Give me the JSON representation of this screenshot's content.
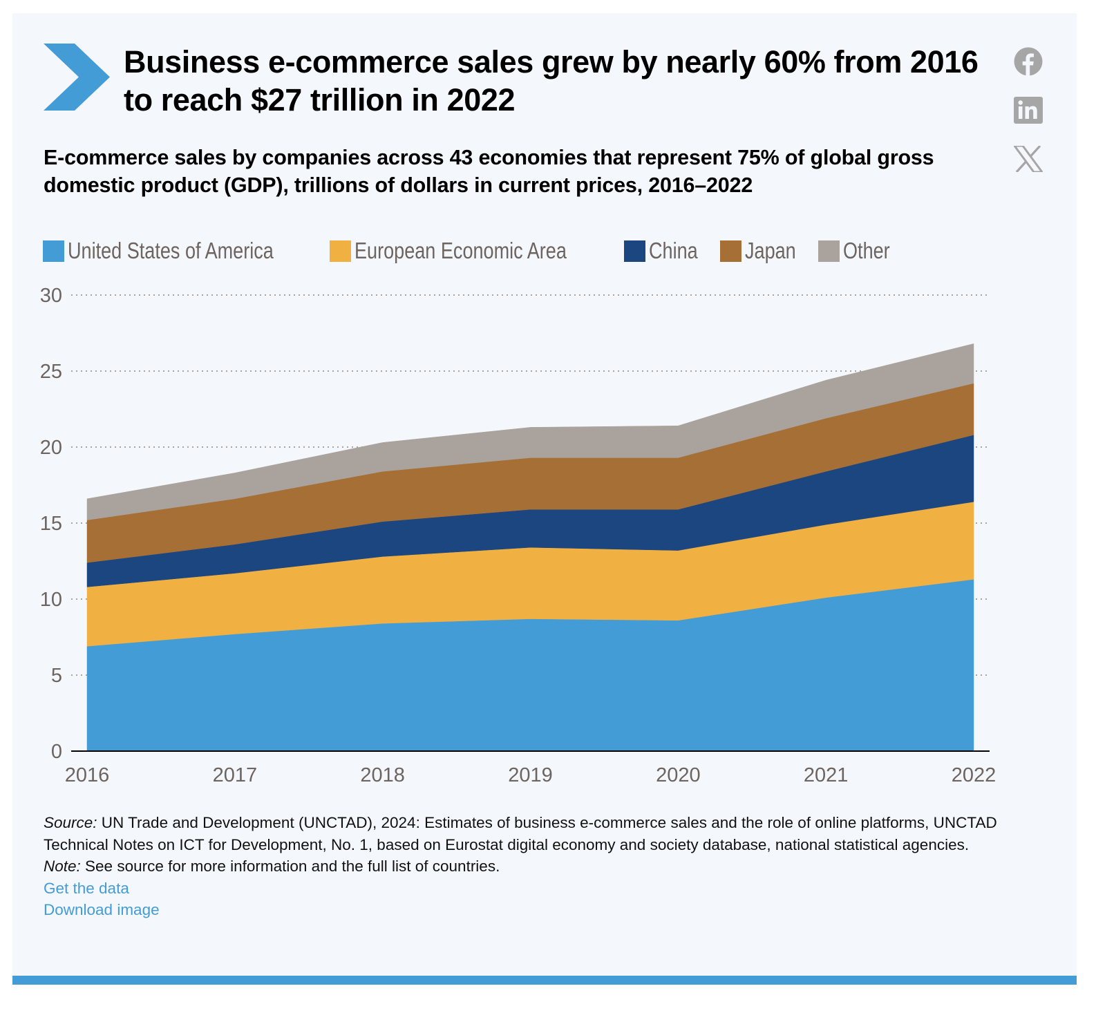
{
  "header": {
    "title": "Business e-commerce sales grew by nearly 60% from 2016 to reach $27 trillion in 2022",
    "subtitle": "E-commerce sales by companies across 43 economies that represent 75% of global gross domestic product (GDP), trillions of dollars in current prices, 2016–2022",
    "chevron_icon": "chevron-right-icon"
  },
  "social": [
    {
      "name": "facebook",
      "icon": "facebook-icon"
    },
    {
      "name": "linkedin",
      "icon": "linkedin-icon"
    },
    {
      "name": "x",
      "icon": "x-twitter-icon"
    }
  ],
  "colors": {
    "accent": "#449cd6",
    "panel_bg": "#f4f7fc",
    "icon_gray": "#a6a6a6"
  },
  "chart_data": {
    "type": "area",
    "stacked": true,
    "title": "E-commerce sales by companies across 43 economies that represent 75% of global gross domestic product (GDP), trillions of dollars in current prices, 2016–2022",
    "xlabel": "",
    "ylabel": "",
    "x": [
      "2016",
      "2017",
      "2018",
      "2019",
      "2020",
      "2021",
      "2022"
    ],
    "ylim": [
      0,
      30
    ],
    "yticks": [
      "0",
      "5",
      "10",
      "15",
      "20",
      "25",
      "30"
    ],
    "grid": true,
    "legend_position": "top-left",
    "series": [
      {
        "name": "United States of America",
        "color": "#449cd6",
        "values": [
          6.9,
          7.7,
          8.4,
          8.7,
          8.6,
          10.1,
          11.3
        ]
      },
      {
        "name": "European Economic Area",
        "color": "#f0b042",
        "values": [
          3.9,
          4.0,
          4.4,
          4.7,
          4.6,
          4.8,
          5.1
        ]
      },
      {
        "name": "China",
        "color": "#1c4680",
        "values": [
          1.6,
          1.9,
          2.3,
          2.5,
          2.7,
          3.5,
          4.4
        ]
      },
      {
        "name": "Japan",
        "color": "#a66f36",
        "values": [
          2.8,
          3.0,
          3.3,
          3.4,
          3.4,
          3.5,
          3.4
        ]
      },
      {
        "name": "Other",
        "color": "#aaa39d",
        "values": [
          1.4,
          1.7,
          1.9,
          2.0,
          2.1,
          2.5,
          2.6
        ]
      }
    ]
  },
  "footer": {
    "source_label": "Source:",
    "source_text": " UN Trade and Development (UNCTAD), 2024: Estimates of business e-commerce sales and the role of online platforms, UNCTAD Technical Notes on ICT for Development, No. 1, based on Eurostat digital economy and society database, national statistical agencies.",
    "note_label": "Note:",
    "note_text": " See source for more information and the full list of countries.",
    "get_data_link": "Get the data",
    "download_link": "Download image"
  }
}
